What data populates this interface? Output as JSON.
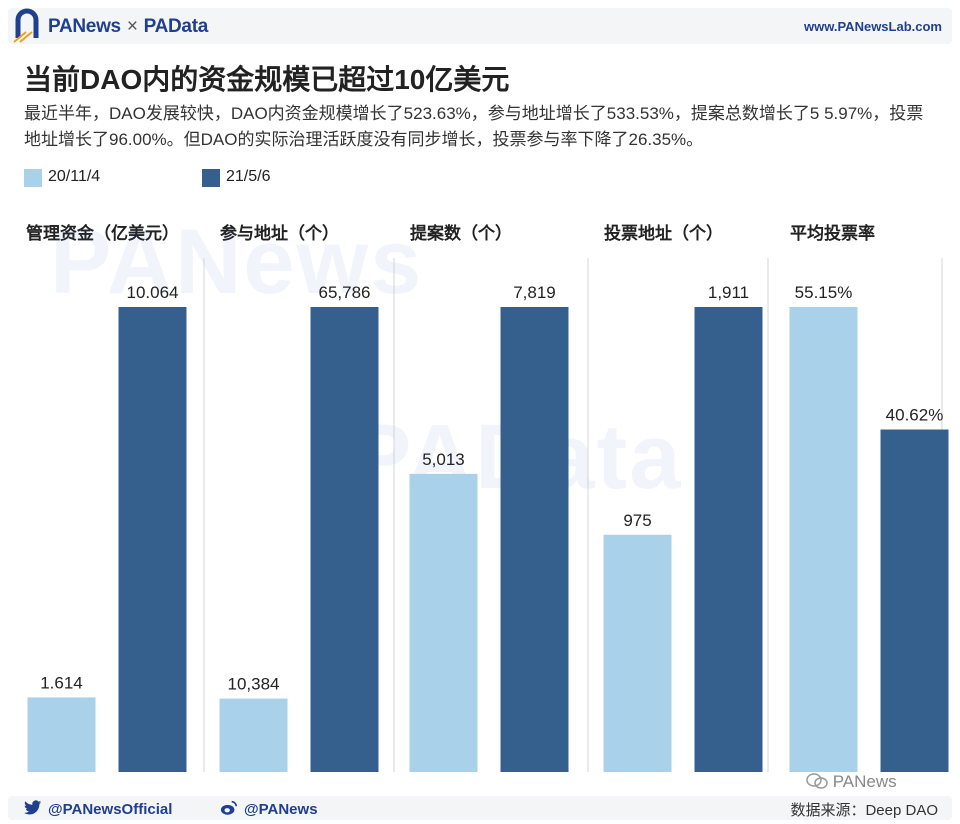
{
  "header": {
    "brand_left": "PANews",
    "brand_sep": "×",
    "brand_right": "PAData",
    "site": "www.PANewsLab.com"
  },
  "title": "当前DAO内的资金规模已超过10亿美元",
  "subtitle": "最近半年，DAO发展较快，DAO内资金规模增长了523.63%，参与地址增长了533.53%，提案总数增长了5 5.97%，投票地址增长了96.00%。但DAO的实际治理活跃度没有同步增长，投票参与率下降了26.35%。",
  "watermarks": {
    "top": "PANews",
    "middle": "PAData"
  },
  "footer": {
    "twitter": "@PANewsOfficial",
    "weibo": "@PANews",
    "source": "数据来源：Deep DAO",
    "wechat": "PANews"
  },
  "colors": {
    "old": "#a9d1ea",
    "new": "#35608e",
    "divider": "#d0d4da"
  },
  "chart_data": {
    "type": "bar",
    "categories": [
      "管理资金（亿美元）",
      "参与地址（个）",
      "提案数（个）",
      "投票地址（个）",
      "平均投票率"
    ],
    "series": [
      {
        "name": "20/11/4",
        "values": [
          1.614,
          10384,
          5013,
          975,
          55.15
        ],
        "labels": [
          "1.614",
          "10,384",
          "5,013",
          "975",
          "55.15%"
        ]
      },
      {
        "name": "21/5/6",
        "values": [
          10.064,
          65786,
          7819,
          1911,
          40.62
        ],
        "labels": [
          "10.064",
          "65,786",
          "7,819",
          "1,911",
          "40.62%"
        ]
      }
    ],
    "legend": "top-left",
    "independent_scales": true,
    "grid": false
  }
}
